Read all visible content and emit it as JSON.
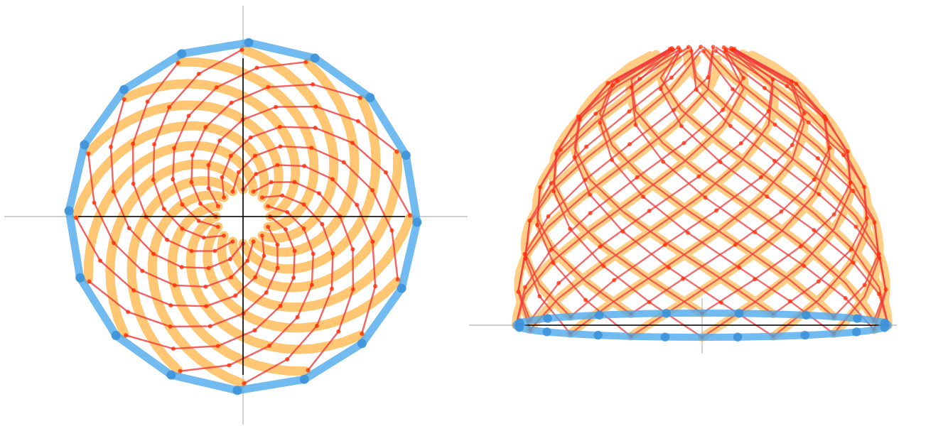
{
  "figure": {
    "panels": [
      {
        "id": "top-view",
        "view": "plan",
        "ring_nodes": 16,
        "spiral_arms": 16,
        "ring_levels": 8
      },
      {
        "id": "side-view",
        "view": "elevation",
        "base_nodes": 16,
        "crossing_members": 16,
        "levels": 8
      }
    ],
    "colors": {
      "base_ring": "#4aa8ec",
      "base_node": "#3a90d8",
      "spiral_member": "#ffa51f",
      "rib_member": "#f03a3a",
      "rib_node": "#ff2a00",
      "axis_light": "#c0c0c0",
      "axis_dark": "#000000"
    }
  }
}
